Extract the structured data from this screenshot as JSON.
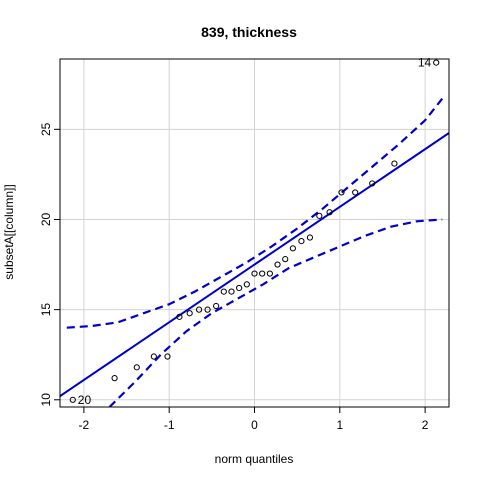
{
  "chart_data": {
    "type": "scatter",
    "title": "839, thickness",
    "xlabel": "norm quantiles",
    "ylabel": "subsetA[[column]]",
    "xlim": [
      -2.28,
      2.28
    ],
    "ylim": [
      9.6,
      28.9
    ],
    "x_ticks": [
      -2,
      -1,
      0,
      1,
      2
    ],
    "y_ticks": [
      10,
      15,
      20,
      25
    ],
    "grid": true,
    "points": [
      {
        "x": -2.13,
        "y": 10.0
      },
      {
        "x": -1.64,
        "y": 11.2
      },
      {
        "x": -1.38,
        "y": 11.8
      },
      {
        "x": -1.18,
        "y": 12.4
      },
      {
        "x": -1.02,
        "y": 12.4
      },
      {
        "x": -0.88,
        "y": 14.6
      },
      {
        "x": -0.76,
        "y": 14.8
      },
      {
        "x": -0.65,
        "y": 15.0
      },
      {
        "x": -0.55,
        "y": 15.0
      },
      {
        "x": -0.45,
        "y": 15.2
      },
      {
        "x": -0.36,
        "y": 16.0
      },
      {
        "x": -0.27,
        "y": 16.0
      },
      {
        "x": -0.18,
        "y": 16.2
      },
      {
        "x": -0.09,
        "y": 16.4
      },
      {
        "x": 0.0,
        "y": 17.0
      },
      {
        "x": 0.09,
        "y": 17.0
      },
      {
        "x": 0.18,
        "y": 17.0
      },
      {
        "x": 0.27,
        "y": 17.5
      },
      {
        "x": 0.36,
        "y": 17.8
      },
      {
        "x": 0.45,
        "y": 18.4
      },
      {
        "x": 0.55,
        "y": 18.8
      },
      {
        "x": 0.65,
        "y": 19.0
      },
      {
        "x": 0.76,
        "y": 20.2
      },
      {
        "x": 0.88,
        "y": 20.4
      },
      {
        "x": 1.02,
        "y": 21.5
      },
      {
        "x": 1.18,
        "y": 21.5
      },
      {
        "x": 1.38,
        "y": 22.0
      },
      {
        "x": 1.64,
        "y": 23.1
      },
      {
        "x": 2.13,
        "y": 28.7
      }
    ],
    "point_labels": [
      {
        "text": "14",
        "x": 2.13,
        "y": 28.7,
        "side": "left"
      },
      {
        "text": "20",
        "x": -2.13,
        "y": 10.0,
        "side": "right"
      }
    ],
    "fit_line": {
      "intercept": 17.5,
      "slope": 3.2,
      "color": "#0000CD"
    },
    "envelope_upper": [
      {
        "x": -2.2,
        "y": 14.0
      },
      {
        "x": -1.9,
        "y": 14.1
      },
      {
        "x": -1.6,
        "y": 14.3
      },
      {
        "x": -1.3,
        "y": 14.8
      },
      {
        "x": -1.0,
        "y": 15.3
      },
      {
        "x": -0.7,
        "y": 16.0
      },
      {
        "x": -0.4,
        "y": 16.8
      },
      {
        "x": -0.1,
        "y": 17.6
      },
      {
        "x": 0.2,
        "y": 18.5
      },
      {
        "x": 0.5,
        "y": 19.5
      },
      {
        "x": 0.8,
        "y": 20.6
      },
      {
        "x": 1.1,
        "y": 21.8
      },
      {
        "x": 1.4,
        "y": 23.0
      },
      {
        "x": 1.7,
        "y": 24.2
      },
      {
        "x": 2.0,
        "y": 25.5
      },
      {
        "x": 2.2,
        "y": 26.7
      }
    ],
    "envelope_lower": [
      {
        "x": -1.7,
        "y": 9.6
      },
      {
        "x": -1.4,
        "y": 11.0
      },
      {
        "x": -1.1,
        "y": 12.5
      },
      {
        "x": -0.8,
        "y": 13.8
      },
      {
        "x": -0.5,
        "y": 14.8
      },
      {
        "x": -0.2,
        "y": 15.6
      },
      {
        "x": 0.1,
        "y": 16.4
      },
      {
        "x": 0.4,
        "y": 17.3
      },
      {
        "x": 0.7,
        "y": 17.9
      },
      {
        "x": 1.0,
        "y": 18.5
      },
      {
        "x": 1.3,
        "y": 19.1
      },
      {
        "x": 1.6,
        "y": 19.6
      },
      {
        "x": 1.9,
        "y": 19.9
      },
      {
        "x": 2.2,
        "y": 20.0
      }
    ],
    "colors": {
      "line": "#0000CD",
      "grid": "#D3D3D3",
      "points": "#000000"
    }
  }
}
